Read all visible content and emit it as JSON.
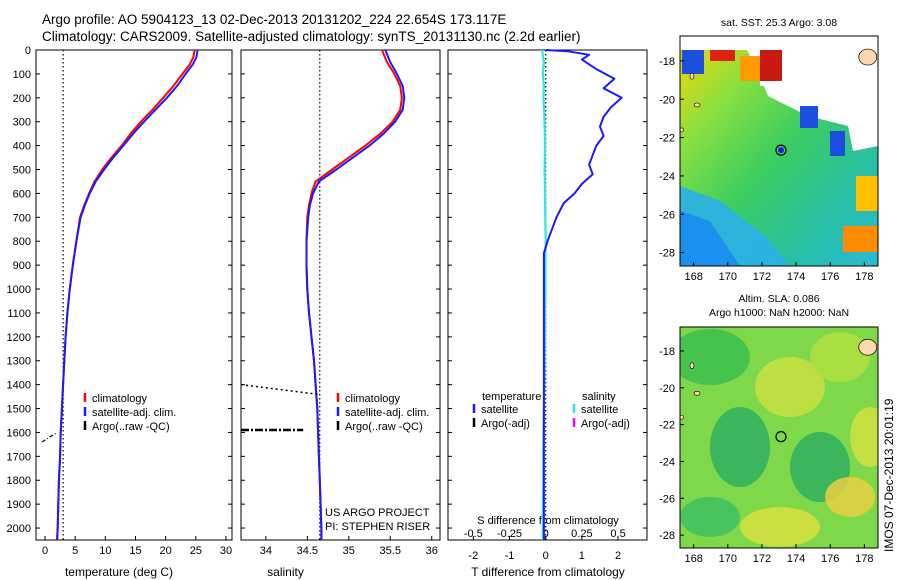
{
  "header": {
    "line1": "Argo profile: AO 5904123_13 02-Dec-2013 20131202_224 22.654S 173.117E",
    "line2": "Climatology: CARS2009. Satellite-adjusted climatology: synTS_20131130.nc (2.2d earlier)"
  },
  "colors": {
    "climatology": "#ff0000",
    "satellite": "#1a1aff",
    "argo": "#000000",
    "salinity_sat": "#2ee6e6",
    "argo_adj_sal": "#ff00ff"
  },
  "chart_data": [
    {
      "type": "line",
      "id": "temperature",
      "xlabel": "temperature (deg C)",
      "xlim": [
        -1.5,
        31
      ],
      "ylim": [
        2050,
        0
      ],
      "xticks": [
        "0",
        "5",
        "10",
        "15",
        "20",
        "25",
        "30"
      ],
      "yticks": [
        "0",
        "100",
        "200",
        "300",
        "400",
        "500",
        "600",
        "700",
        "800",
        "900",
        "1000",
        "1100",
        "1200",
        "1300",
        "1400",
        "1500",
        "1600",
        "1700",
        "1800",
        "1900",
        "2000"
      ],
      "reference_x": 3,
      "legend": [
        "climatology",
        "satellite-adj. clim.",
        "Argo(..raw -QC)"
      ],
      "series": [
        {
          "name": "climatology",
          "points": [
            [
              24.8,
              0
            ],
            [
              24.6,
              30
            ],
            [
              24.0,
              60
            ],
            [
              22.8,
              100
            ],
            [
              21.3,
              150
            ],
            [
              19.6,
              200
            ],
            [
              17.8,
              250
            ],
            [
              15.9,
              300
            ],
            [
              14.2,
              350
            ],
            [
              12.7,
              400
            ],
            [
              11.0,
              450
            ],
            [
              9.5,
              500
            ],
            [
              8.2,
              550
            ],
            [
              7.3,
              600
            ],
            [
              6.5,
              650
            ],
            [
              5.8,
              700
            ],
            [
              5.2,
              800
            ],
            [
              4.6,
              900
            ],
            [
              4.1,
              1000
            ],
            [
              3.7,
              1100
            ],
            [
              3.4,
              1200
            ],
            [
              3.2,
              1300
            ],
            [
              3.0,
              1400
            ],
            [
              2.8,
              1500
            ],
            [
              2.6,
              1600
            ],
            [
              2.5,
              1700
            ],
            [
              2.3,
              1800
            ],
            [
              2.2,
              1900
            ],
            [
              2.1,
              2000
            ],
            [
              2.0,
              2050
            ]
          ]
        },
        {
          "name": "satellite-adj. clim.",
          "points": [
            [
              25.3,
              0
            ],
            [
              25.1,
              30
            ],
            [
              24.5,
              60
            ],
            [
              23.3,
              100
            ],
            [
              21.9,
              150
            ],
            [
              20.2,
              200
            ],
            [
              18.3,
              250
            ],
            [
              16.4,
              300
            ],
            [
              14.6,
              350
            ],
            [
              13.0,
              400
            ],
            [
              11.3,
              450
            ],
            [
              9.8,
              500
            ],
            [
              8.4,
              550
            ],
            [
              7.4,
              600
            ],
            [
              6.6,
              650
            ],
            [
              5.9,
              700
            ],
            [
              5.2,
              800
            ],
            [
              4.6,
              900
            ],
            [
              4.1,
              1000
            ],
            [
              3.7,
              1100
            ],
            [
              3.4,
              1200
            ],
            [
              3.2,
              1300
            ],
            [
              3.0,
              1400
            ],
            [
              2.8,
              1500
            ],
            [
              2.6,
              1600
            ],
            [
              2.5,
              1700
            ],
            [
              2.3,
              1800
            ],
            [
              2.2,
              1900
            ],
            [
              2.1,
              2000
            ],
            [
              2.0,
              2050
            ]
          ]
        },
        {
          "name": "Argo(..raw -QC)",
          "points": [
            [
              -0.5,
              1640
            ],
            [
              2.0,
              1600
            ]
          ]
        }
      ]
    },
    {
      "type": "line",
      "id": "salinity",
      "xlabel": "salinity",
      "xlim": [
        33.7,
        36.1
      ],
      "ylim": [
        2050,
        0
      ],
      "xticks": [
        "34",
        "34.5",
        "35",
        "35.5",
        "36"
      ],
      "reference_x": 34.65,
      "legend": [
        "climatology",
        "satellite-adj. clim.",
        "Argo(..raw -QC)"
      ],
      "annotation": [
        "US ARGO PROJECT",
        "PI: STEPHEN RISER"
      ],
      "series": [
        {
          "name": "climatology",
          "points": [
            [
              35.4,
              0
            ],
            [
              35.46,
              50
            ],
            [
              35.55,
              100
            ],
            [
              35.62,
              150
            ],
            [
              35.64,
              200
            ],
            [
              35.62,
              250
            ],
            [
              35.53,
              300
            ],
            [
              35.38,
              350
            ],
            [
              35.2,
              400
            ],
            [
              35.0,
              450
            ],
            [
              34.8,
              500
            ],
            [
              34.6,
              550
            ],
            [
              34.55,
              600
            ],
            [
              34.52,
              650
            ],
            [
              34.5,
              700
            ],
            [
              34.49,
              800
            ],
            [
              34.49,
              900
            ],
            [
              34.5,
              1000
            ],
            [
              34.52,
              1100
            ],
            [
              34.55,
              1200
            ],
            [
              34.58,
              1300
            ],
            [
              34.6,
              1400
            ],
            [
              34.62,
              1500
            ],
            [
              34.63,
              1600
            ],
            [
              34.64,
              1700
            ],
            [
              34.65,
              1800
            ],
            [
              34.66,
              1900
            ],
            [
              34.67,
              2000
            ],
            [
              34.67,
              2050
            ]
          ]
        },
        {
          "name": "satellite-adj. clim.",
          "points": [
            [
              35.44,
              0
            ],
            [
              35.5,
              50
            ],
            [
              35.58,
              100
            ],
            [
              35.65,
              150
            ],
            [
              35.67,
              200
            ],
            [
              35.65,
              250
            ],
            [
              35.56,
              300
            ],
            [
              35.42,
              350
            ],
            [
              35.25,
              400
            ],
            [
              35.05,
              450
            ],
            [
              34.85,
              500
            ],
            [
              34.64,
              550
            ],
            [
              34.57,
              600
            ],
            [
              34.53,
              650
            ],
            [
              34.51,
              700
            ],
            [
              34.49,
              800
            ],
            [
              34.49,
              900
            ],
            [
              34.5,
              1000
            ],
            [
              34.52,
              1100
            ],
            [
              34.55,
              1200
            ],
            [
              34.58,
              1300
            ],
            [
              34.6,
              1400
            ],
            [
              34.62,
              1500
            ],
            [
              34.63,
              1600
            ],
            [
              34.64,
              1700
            ],
            [
              34.65,
              1800
            ],
            [
              34.66,
              1900
            ],
            [
              34.67,
              2000
            ],
            [
              34.67,
              2050
            ]
          ]
        },
        {
          "name": "Argo(..raw -QC)",
          "points": [
            [
              33.7,
              1400
            ],
            [
              34.62,
              1440
            ]
          ]
        },
        {
          "name": "Argo(..raw -QC)",
          "points": [
            [
              33.7,
              1590
            ],
            [
              34.45,
              1590
            ]
          ]
        }
      ]
    },
    {
      "type": "line",
      "id": "difference",
      "xlabel": "T difference from climatology",
      "xlabel_top": "S difference from climatology",
      "xlim": [
        -2.7,
        2.8
      ],
      "ylim": [
        2050,
        0
      ],
      "xticks": [
        "-2",
        "-1",
        "0",
        "1",
        "2"
      ],
      "xticks_s": [
        "-0.5",
        "-0.25",
        "0",
        "0.25",
        "0.5"
      ],
      "reference_x": 0,
      "legend_temperature_title": "temperature",
      "legend_salinity_title": "salinity",
      "legend_temperature": [
        "satellite",
        "Argo(-adj)"
      ],
      "legend_salinity": [
        "satellite",
        "Argo(-adj)"
      ],
      "series": [
        {
          "name": "satellite",
          "points": [
            [
              0.0,
              0
            ],
            [
              0.6,
              5
            ],
            [
              1.2,
              20
            ],
            [
              1.0,
              40
            ],
            [
              1.4,
              80
            ],
            [
              1.9,
              120
            ],
            [
              1.6,
              160
            ],
            [
              2.1,
              200
            ],
            [
              1.8,
              240
            ],
            [
              1.6,
              280
            ],
            [
              1.5,
              320
            ],
            [
              1.6,
              360
            ],
            [
              1.4,
              400
            ],
            [
              1.3,
              440
            ],
            [
              1.2,
              480
            ],
            [
              1.3,
              520
            ],
            [
              1.0,
              560
            ],
            [
              0.8,
              600
            ],
            [
              0.5,
              640
            ],
            [
              0.3,
              700
            ],
            [
              0.15,
              760
            ],
            [
              0.05,
              800
            ],
            [
              -0.05,
              850
            ],
            [
              -0.05,
              900
            ],
            [
              -0.05,
              1000
            ],
            [
              -0.05,
              1100
            ],
            [
              -0.05,
              1200
            ],
            [
              -0.05,
              1300
            ],
            [
              -0.05,
              1400
            ],
            [
              -0.05,
              1500
            ],
            [
              -0.05,
              1600
            ],
            [
              -0.05,
              1700
            ],
            [
              -0.05,
              1800
            ],
            [
              -0.05,
              1900
            ],
            [
              -0.05,
              2000
            ],
            [
              -0.05,
              2050
            ]
          ]
        },
        {
          "name": "satellite",
          "points": [
            [
              -0.1,
              0
            ],
            [
              -0.05,
              50
            ],
            [
              -0.08,
              100
            ],
            [
              -0.05,
              150
            ],
            [
              -0.06,
              200
            ],
            [
              -0.04,
              260
            ],
            [
              -0.03,
              320
            ],
            [
              -0.02,
              400
            ],
            [
              -0.03,
              500
            ],
            [
              -0.02,
              600
            ],
            [
              -0.01,
              700
            ],
            [
              0.0,
              800
            ],
            [
              -0.01,
              900
            ],
            [
              -0.01,
              1000
            ],
            [
              -0.02,
              1100
            ],
            [
              -0.02,
              1200
            ],
            [
              -0.03,
              1300
            ],
            [
              -0.04,
              1400
            ],
            [
              -0.05,
              1500
            ],
            [
              -0.06,
              1600
            ],
            [
              -0.07,
              1700
            ],
            [
              -0.07,
              1800
            ],
            [
              -0.08,
              1900
            ],
            [
              -0.08,
              2000
            ],
            [
              -0.08,
              2050
            ]
          ]
        }
      ]
    },
    {
      "type": "heatmap",
      "id": "sst_map",
      "title": "sat. SST: 25.3 Argo: 3.08",
      "xticks": [
        "168",
        "170",
        "172",
        "174",
        "176",
        "178"
      ],
      "yticks": [
        "-18",
        "-20",
        "-22",
        "-24",
        "-26",
        "-28"
      ],
      "xlim": [
        167.2,
        178.8
      ],
      "ylim": [
        -28.7,
        -16.7
      ],
      "marker": [
        173.117,
        -22.654
      ]
    },
    {
      "type": "heatmap",
      "id": "sla_map",
      "title": "Altim. SLA: 0.086",
      "subtitle": "Argo h1000: NaN h2000: NaN",
      "xticks": [
        "168",
        "170",
        "172",
        "174",
        "176",
        "178"
      ],
      "yticks": [
        "-18",
        "-20",
        "-22",
        "-24",
        "-26",
        "-28"
      ],
      "xlim": [
        167.2,
        178.8
      ],
      "ylim": [
        -28.7,
        -16.7
      ],
      "marker": [
        173.117,
        -22.654
      ]
    }
  ],
  "vertical_stamp": "IMOS 07-Dec-2013 20:01:19"
}
